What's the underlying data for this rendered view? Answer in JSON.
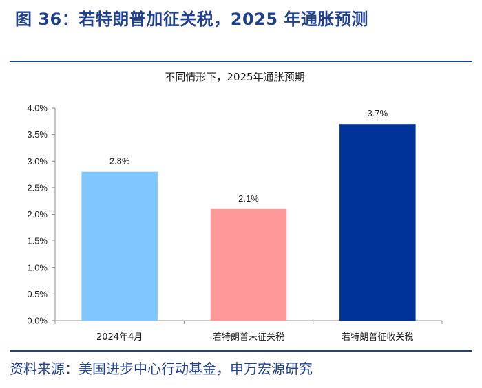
{
  "figure": {
    "title": "图 36：若特朗普加征关税，2025 年通胀预测",
    "source": "资料来源：美国进步中心行动基金，申万宏源研究"
  },
  "chart_data": {
    "type": "bar",
    "title": "不同情形下，2025年通胀预期",
    "categories": [
      "2024年4月",
      "若特朗普未征关税",
      "若特朗普征收关税"
    ],
    "values": [
      2.8,
      2.1,
      3.7
    ],
    "value_labels": [
      "2.8%",
      "2.1%",
      "3.7%"
    ],
    "colors": [
      "#7fc8ff",
      "#ff9999",
      "#003399"
    ],
    "ylim": [
      0,
      4.0
    ],
    "yticks": [
      0,
      0.5,
      1.0,
      1.5,
      2.0,
      2.5,
      3.0,
      3.5,
      4.0
    ],
    "ytick_labels": [
      "0.0%",
      "0.5%",
      "1.0%",
      "1.5%",
      "2.0%",
      "2.5%",
      "3.0%",
      "3.5%",
      "4.0%"
    ],
    "xlabel": "",
    "ylabel": "",
    "grid": false,
    "legend": "none"
  }
}
